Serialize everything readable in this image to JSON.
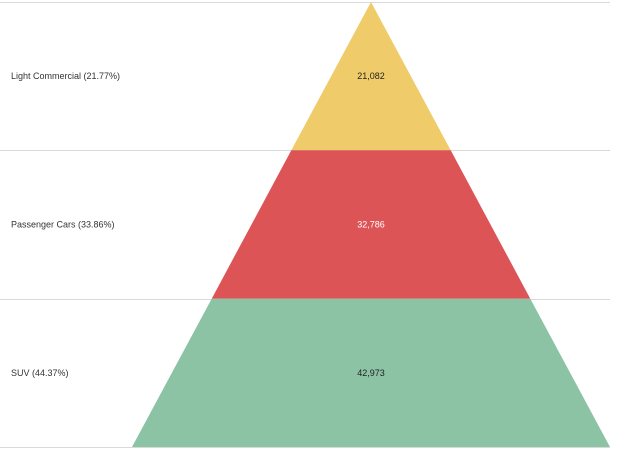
{
  "chart_data": {
    "type": "pyramid",
    "segments": [
      {
        "name": "Light Commercial",
        "percent_label": "Light Commercial (21.77%)",
        "value": 21082,
        "value_label": "21,082",
        "color": "#EFCB6A",
        "value_color": "#222222"
      },
      {
        "name": "Passenger Cars",
        "percent_label": "Passenger Cars (33.86%)",
        "value": 32786,
        "value_label": "32,786",
        "color": "#DD5457",
        "value_color": "#ffffff"
      },
      {
        "name": "SUV",
        "percent_label": "SUV (44.37%)",
        "value": 42973,
        "value_label": "42,973",
        "color": "#8CC3A5",
        "value_color": "#222222"
      }
    ],
    "grid": true
  }
}
